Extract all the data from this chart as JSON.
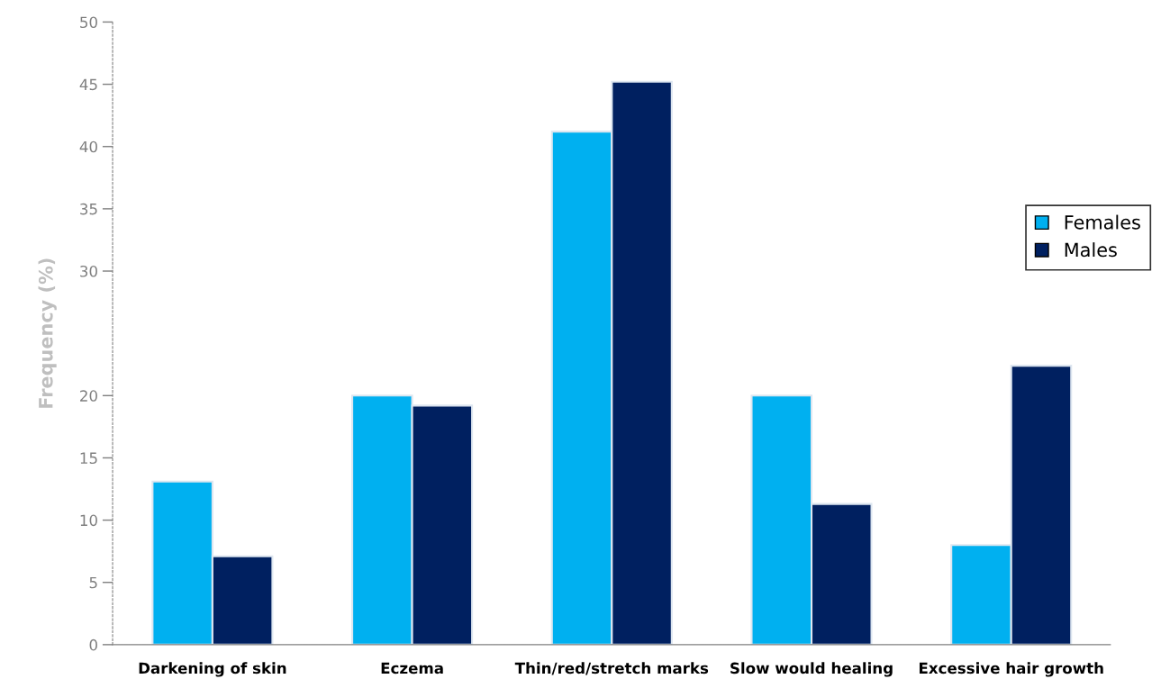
{
  "chart_data": {
    "type": "bar",
    "ylabel": "Frequency (%)",
    "categories": [
      "Darkening of skin",
      "Eczema",
      "Thin/red/stretch marks",
      "Slow would healing",
      "Excessive hair growth"
    ],
    "series": [
      {
        "name": "Females",
        "color": "#00b0f0",
        "values": [
          13.1,
          20,
          41.2,
          20,
          8
        ]
      },
      {
        "name": "Males",
        "color": "#002060",
        "values": [
          7.1,
          19.2,
          45.2,
          11.3,
          22.4
        ]
      }
    ],
    "ylim": [
      0,
      50
    ],
    "yticks": [
      0,
      5,
      10,
      15,
      20,
      30,
      35,
      40,
      45,
      50
    ],
    "grid": false,
    "legend": "right"
  }
}
